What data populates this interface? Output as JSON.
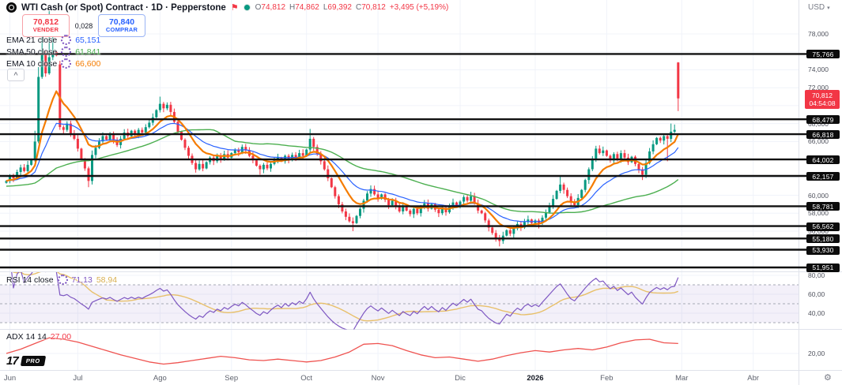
{
  "header": {
    "symbol_title": "WTI Cash (or Spot) Contract · 1D · Pepperstone",
    "ohlc": {
      "o_key": "O",
      "o": "74,812",
      "h_key": "H",
      "h": "74,862",
      "l_key": "L",
      "l": "69,392",
      "c_key": "C",
      "c": "70,812",
      "change": "+3,495 (+5,19%)"
    },
    "sell": {
      "price": "70,812",
      "label": "VENDER"
    },
    "spread": "0,028",
    "buy": {
      "price": "70,840",
      "label": "COMPRAR"
    }
  },
  "legend": {
    "items": [
      {
        "label": "EMA 21 close",
        "value": "65,151",
        "color": "#2962ff"
      },
      {
        "label": "SMA 50 close",
        "value": "61,841",
        "color": "#4caf50"
      },
      {
        "label": "EMA 10 close",
        "value": "66,600",
        "color": "#f57c00"
      }
    ],
    "rsi": {
      "label": "RSI 14 close",
      "value": "71,13",
      "ma_value": "58,94"
    },
    "adx": {
      "label": "ADX 14 14",
      "value": "27,00"
    }
  },
  "axis": {
    "currency": "USD",
    "price_label": {
      "price": "70,812",
      "countdown": "04:54:08"
    },
    "gray_ticks": [
      {
        "v": 78,
        "label": "78,000"
      },
      {
        "v": 74,
        "label": "74,000"
      },
      {
        "v": 72,
        "label": "72,000"
      },
      {
        "v": 68,
        "label": "68,000"
      },
      {
        "v": 66,
        "label": "66,000"
      },
      {
        "v": 60,
        "label": "60,000"
      },
      {
        "v": 58,
        "label": "58,000"
      },
      {
        "v": 56,
        "label": "56,000"
      }
    ],
    "rsi_ticks": [
      {
        "v": 80,
        "label": "80,00"
      },
      {
        "v": 60,
        "label": "60,00"
      },
      {
        "v": 40,
        "label": "40,00"
      }
    ],
    "adx_ticks": [
      {
        "v": 20,
        "label": "20,00"
      }
    ]
  },
  "watermark": {
    "mark": "17",
    "pro_label": "PRO"
  },
  "colors": {
    "up": "#089981",
    "down": "#f23645",
    "level": "#111111",
    "grid": "#f0f3fa",
    "sep": "#e0e3eb",
    "ema10": "#f57c00",
    "ema21": "#2962ff",
    "sma50": "#4caf50",
    "rsi": "#7e57c2",
    "rsi_ma": "#e8c06a",
    "rsi_band": "rgba(126,87,194,0.09)",
    "rsi_dash": "#a6aab5",
    "adx": "#ef5350",
    "accent_red": "#f23645",
    "accent_blue": "#2962ff"
  },
  "chart_data": {
    "type": "candlestick",
    "title": "WTI Cash (or Spot) Contract",
    "timeframe": "1D",
    "provider": "Pepperstone",
    "price_unit": "USD",
    "last_bar": {
      "open": 74.812,
      "high": 74.862,
      "low": 69.392,
      "close": 70.812,
      "change": 3.495,
      "change_pct": 5.19
    },
    "levels": [
      {
        "value": 75.766,
        "label": "75,766"
      },
      {
        "value": 68.479,
        "label": "68,479"
      },
      {
        "value": 66.818,
        "label": "66,818"
      },
      {
        "value": 64.002,
        "label": "64,002"
      },
      {
        "value": 62.157,
        "label": "62,157"
      },
      {
        "value": 58.781,
        "label": "58,781"
      },
      {
        "value": 56.562,
        "label": "56,562"
      },
      {
        "value": 55.18,
        "label": "55,180"
      },
      {
        "value": 53.93,
        "label": "53,930"
      },
      {
        "value": 51.951,
        "label": "51,951"
      }
    ],
    "current_price": {
      "value": 70.812,
      "countdown": "04:54:08",
      "direction": "down"
    },
    "months": [
      {
        "label": "Jun",
        "index": 1
      },
      {
        "label": "Jul",
        "index": 20
      },
      {
        "label": "Ago",
        "index": 43
      },
      {
        "label": "Sep",
        "index": 63
      },
      {
        "label": "Oct",
        "index": 84
      },
      {
        "label": "Nov",
        "index": 104
      },
      {
        "label": "Dic",
        "index": 127
      },
      {
        "label": "2026",
        "index": 148,
        "bold": true
      },
      {
        "label": "Feb",
        "index": 168
      },
      {
        "label": "Mar",
        "index": 189
      },
      {
        "label": "Abr",
        "index": 209
      }
    ],
    "candles": {
      "first_open": 61.4,
      "closes": [
        61.6,
        62.2,
        61.9,
        62.6,
        63.1,
        62.7,
        63.4,
        64.0,
        66.0,
        73.2,
        75.8,
        73.6,
        75.4,
        76.0,
        75.6,
        67.6,
        67.3,
        68.0,
        66.9,
        66.3,
        65.2,
        64.0,
        63.0,
        61.6,
        64.5,
        65.3,
        66.0,
        66.6,
        66.2,
        66.9,
        66.2,
        65.6,
        66.3,
        67.0,
        66.6,
        67.2,
        66.8,
        67.3,
        67.0,
        67.6,
        68.1,
        68.7,
        69.5,
        70.2,
        69.7,
        70.1,
        69.3,
        68.2,
        67.1,
        66.2,
        65.3,
        64.4,
        63.6,
        62.9,
        63.5,
        63.0,
        63.7,
        64.2,
        63.8,
        64.4,
        64.0,
        64.6,
        64.2,
        64.7,
        65.1,
        64.8,
        65.4,
        65.0,
        64.4,
        63.9,
        63.3,
        62.9,
        63.4,
        63.0,
        63.5,
        63.9,
        64.2,
        63.8,
        64.4,
        64.0,
        64.5,
        64.2,
        64.7,
        64.4,
        65.1,
        66.3,
        65.4,
        64.6,
        63.8,
        62.9,
        61.9,
        60.9,
        59.9,
        59.0,
        58.2,
        57.6,
        57.1,
        56.9,
        57.7,
        58.5,
        59.4,
        60.2,
        60.7,
        60.1,
        59.6,
        60.1,
        59.5,
        58.9,
        59.4,
        58.8,
        58.2,
        58.8,
        58.3,
        57.9,
        58.5,
        58.0,
        58.6,
        59.1,
        58.5,
        59.0,
        58.4,
        58.0,
        58.6,
        58.1,
        58.7,
        59.2,
        58.8,
        59.3,
        59.8,
        59.4,
        59.9,
        59.1,
        58.3,
        58.0,
        57.2,
        56.4,
        55.8,
        55.2,
        54.9,
        55.5,
        56.1,
        55.7,
        56.3,
        56.8,
        56.4,
        57.0,
        57.3,
        56.9,
        57.2,
        56.9,
        57.5,
        58.1,
        58.8,
        59.6,
        60.5,
        61.2,
        60.6,
        59.9,
        59.2,
        58.9,
        59.7,
        60.6,
        61.7,
        62.9,
        64.1,
        65.2,
        64.7,
        65.0,
        64.4,
        63.9,
        64.6,
        64.0,
        64.7,
        64.2,
        63.7,
        64.3,
        63.5,
        62.9,
        62.3,
        63.6,
        64.9,
        65.7,
        66.4,
        66.1,
        66.6,
        66.3,
        67.1,
        67.3,
        70.812
      ],
      "overrides": {
        "8": {
          "h": 67.2
        },
        "9": {
          "h": 74.3,
          "l": 65.8
        },
        "10": {
          "h": 78.5
        },
        "12": {
          "h": 80.55
        },
        "13": {
          "h": 78.0
        },
        "15": {
          "o": 74.6,
          "h": 75.0,
          "l": 67.3
        },
        "23": {
          "l": 60.9
        },
        "24": {
          "l": 61.2,
          "h": 65.0
        },
        "43": {
          "h": 71.0
        },
        "71": {
          "l": 62.3
        },
        "85": {
          "h": 67.4
        },
        "97": {
          "l": 56.0
        },
        "102": {
          "h": 61.1
        },
        "130": {
          "h": 60.4
        },
        "138": {
          "l": 54.3
        },
        "149": {
          "l": 56.3
        },
        "155": {
          "h": 62.2
        },
        "178": {
          "l": 61.7
        },
        "185": {
          "l": 63.8
        },
        "186": {
          "h": 68.0
        },
        "187": {
          "h": 67.9
        },
        "188": {
          "o": 74.812,
          "h": 74.862,
          "l": 69.392,
          "c": 70.812
        }
      }
    },
    "indicators": {
      "ema10": {
        "period": 10,
        "last": 66.6
      },
      "ema21": {
        "period": 21,
        "last": 65.151
      },
      "sma50": {
        "period": 50,
        "last": 61.841
      },
      "rsi": {
        "period": 14,
        "last": 71.13,
        "ma_last": 58.94,
        "bands": [
          70,
          50,
          30
        ],
        "range": [
          80,
          40
        ]
      },
      "adx": {
        "period": 14,
        "smoothing": 14,
        "last": 27.0,
        "sample_step": 4,
        "values": [
          20,
          23,
          27,
          31,
          30,
          28,
          25,
          22,
          19,
          16.5,
          14,
          12.5,
          13.5,
          15,
          16.5,
          18,
          17,
          15.5,
          15,
          16,
          15,
          14,
          15,
          17.5,
          21,
          26.5,
          27,
          25.5,
          22,
          19,
          17,
          17.5,
          16,
          14.5,
          16,
          18.5,
          20.5,
          22,
          21,
          22.5,
          23.5,
          22.5,
          24.5,
          27.5,
          29.5,
          30,
          27.5,
          27
        ]
      }
    }
  }
}
